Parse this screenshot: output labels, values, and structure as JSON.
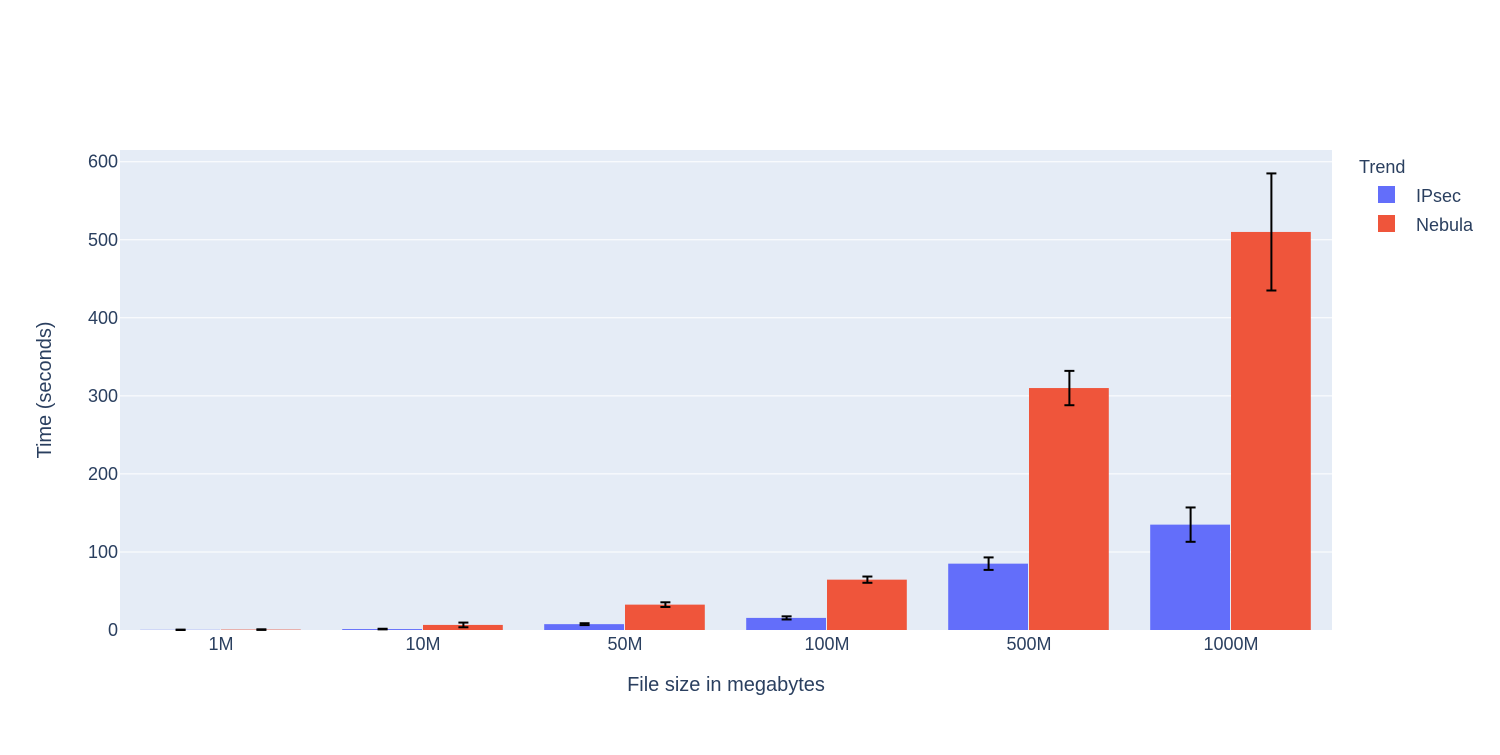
{
  "chart_data": {
    "type": "bar",
    "title": "",
    "xlabel": "File size in megabytes",
    "ylabel": "Time (seconds)",
    "categories": [
      "1M",
      "10M",
      "50M",
      "100M",
      "500M",
      "1000M"
    ],
    "ylim": [
      0,
      615
    ],
    "yticks": [
      0,
      100,
      200,
      300,
      400,
      500,
      600
    ],
    "grid": true,
    "legend": {
      "title": "Trend",
      "placement": "right"
    },
    "series": [
      {
        "name": "IPsec",
        "color": "#636efa",
        "values": [
          0.2,
          1.2,
          7.5,
          15.5,
          85,
          135
        ],
        "error": [
          0.3,
          0.4,
          1.2,
          2.0,
          8,
          22
        ]
      },
      {
        "name": "Nebula",
        "color": "#ef553b",
        "values": [
          0.5,
          6.5,
          32.5,
          64.5,
          310,
          510
        ],
        "error": [
          0.4,
          3.0,
          3.0,
          4.0,
          22,
          75
        ]
      }
    ],
    "plot_bgcolor": "#e5ecf6",
    "gridcolor": "#ffffff",
    "errorbar_color": "#000000"
  }
}
